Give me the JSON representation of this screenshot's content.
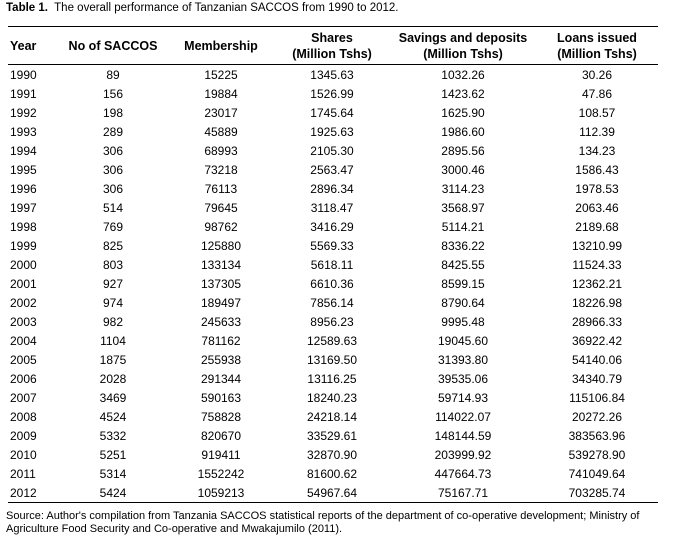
{
  "caption": {
    "label": "Table 1.",
    "text": "The overall performance of Tanzanian SACCOS from 1990 to 2012."
  },
  "table": {
    "headers": [
      {
        "line1": "Year",
        "line2": ""
      },
      {
        "line1": "No of SACCOS",
        "line2": ""
      },
      {
        "line1": "Membership",
        "line2": ""
      },
      {
        "line1": "Shares",
        "line2": "(Million Tshs)"
      },
      {
        "line1": "Savings and deposits",
        "line2": "(Million Tshs)"
      },
      {
        "line1": "Loans issued",
        "line2": "(Million Tshs)"
      }
    ],
    "rows": [
      [
        "1990",
        "89",
        "15225",
        "1345.63",
        "1032.26",
        "30.26"
      ],
      [
        "1991",
        "156",
        "19884",
        "1526.99",
        "1423.62",
        "47.86"
      ],
      [
        "1992",
        "198",
        "23017",
        "1745.64",
        "1625.90",
        "108.57"
      ],
      [
        "1993",
        "289",
        "45889",
        "1925.63",
        "1986.60",
        "112.39"
      ],
      [
        "1994",
        "306",
        "68993",
        "2105.30",
        "2895.56",
        "134.23"
      ],
      [
        "1995",
        "306",
        "73218",
        "2563.47",
        "3000.46",
        "1586.43"
      ],
      [
        "1996",
        "306",
        "76113",
        "2896.34",
        "3114.23",
        "1978.53"
      ],
      [
        "1997",
        "514",
        "79645",
        "3118.47",
        "3568.97",
        "2063.46"
      ],
      [
        "1998",
        "769",
        "98762",
        "3416.29",
        "5114.21",
        "2189.68"
      ],
      [
        "1999",
        "825",
        "125880",
        "5569.33",
        "8336.22",
        "13210.99"
      ],
      [
        "2000",
        "803",
        "133134",
        "5618.11",
        "8425.55",
        "11524.33"
      ],
      [
        "2001",
        "927",
        "137305",
        "6610.36",
        "8599.15",
        "12362.21"
      ],
      [
        "2002",
        "974",
        "189497",
        "7856.14",
        "8790.64",
        "18226.98"
      ],
      [
        "2003",
        "982",
        "245633",
        "8956.23",
        "9995.48",
        "28966.33"
      ],
      [
        "2004",
        "1104",
        "781162",
        "12589.63",
        "19045.60",
        "36922.42"
      ],
      [
        "2005",
        "1875",
        "255938",
        "13169.50",
        "31393.80",
        "54140.06"
      ],
      [
        "2006",
        "2028",
        "291344",
        "13116.25",
        "39535.06",
        "34340.79"
      ],
      [
        "2007",
        "3469",
        "590163",
        "18240.23",
        "59714.93",
        "115106.84"
      ],
      [
        "2008",
        "4524",
        "758828",
        "24218.14",
        "114022.07",
        "20272.26"
      ],
      [
        "2009",
        "5332",
        "820670",
        "33529.61",
        "148144.59",
        "383563.96"
      ],
      [
        "2010",
        "5251",
        "919411",
        "32870.90",
        "203999.92",
        "539278.90"
      ],
      [
        "2011",
        "5314",
        "1552242",
        "81600.62",
        "447664.73",
        "741049.64"
      ],
      [
        "2012",
        "5424",
        "1059213",
        "54967.64",
        "75167.71",
        "703285.74"
      ]
    ]
  },
  "source": "Source: Author's compilation from Tanzania SACCOS statistical reports of the department of co-operative development; Ministry of Agriculture Food Security and Co-operative and Mwakajumilo (2011)."
}
